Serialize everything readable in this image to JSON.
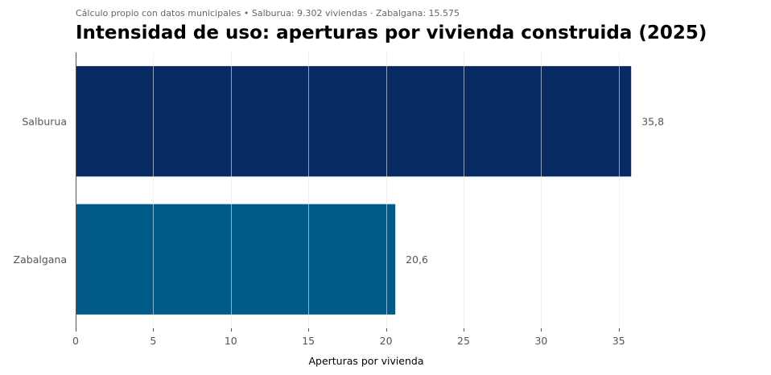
{
  "chart_data": {
    "type": "bar",
    "orientation": "horizontal",
    "subtitle": "Cálculo propio con datos municipales • Salburua: 9.302 viviendas · Zabalgana: 15.575",
    "title": "Intensidad de uso: aperturas por vivienda construida (2025)",
    "xlabel": "Aperturas por vivienda",
    "ylabel": "",
    "xlim": [
      0,
      37.5
    ],
    "xticks": [
      0,
      5,
      10,
      15,
      20,
      25,
      30,
      35
    ],
    "xtick_labels": [
      "0",
      "5",
      "10",
      "15",
      "20",
      "25",
      "30",
      "35"
    ],
    "grid": true,
    "categories": [
      "Salburua",
      "Zabalgana"
    ],
    "values": [
      35.8,
      20.6
    ],
    "value_labels": [
      "35,8",
      "20,6"
    ],
    "colors": [
      "#082a63",
      "#005a8a"
    ]
  }
}
